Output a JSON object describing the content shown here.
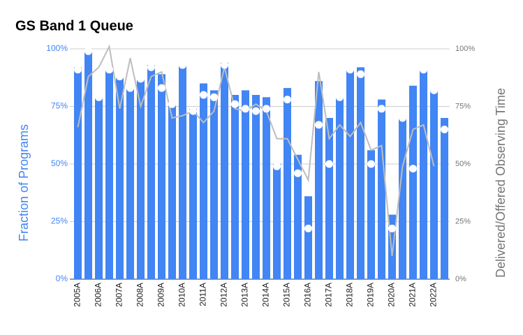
{
  "chart_data": {
    "type": "bar-dot-line",
    "title": "GS Band 1 Queue",
    "y_label": "Fraction of Programs",
    "y2_label": "Delivered/Offered Observing Time",
    "categories": [
      "2005A",
      null,
      "2006A",
      null,
      "2007A",
      null,
      "2008A",
      null,
      "2009A",
      null,
      "2010A",
      null,
      "2011A",
      null,
      "2012A",
      null,
      "2013A",
      null,
      "2014A",
      null,
      "2015A",
      null,
      "2016A",
      null,
      "2017A",
      null,
      "2018A",
      null,
      "2019A",
      null,
      "2020A",
      null,
      "2021A",
      null,
      "2022A",
      null
    ],
    "series": [
      {
        "kind": "bar",
        "color": "#4285f4",
        "values": [
          92,
          99,
          79,
          91,
          88,
          83,
          87,
          93,
          89,
          76,
          93,
          74,
          85,
          82,
          94,
          80,
          82,
          80,
          79,
          50,
          83,
          54,
          36,
          86,
          70,
          79,
          91,
          92,
          56,
          78,
          28,
          70,
          84,
          91,
          82,
          70
        ]
      },
      {
        "kind": "dot",
        "color": "#ffffff",
        "values": [
          91,
          99,
          79,
          91,
          88,
          83,
          87,
          92,
          83,
          76,
          93,
          73,
          80,
          79,
          93,
          76,
          74,
          73,
          74,
          49,
          78,
          46,
          22,
          67,
          50,
          79,
          91,
          89,
          50,
          74,
          22,
          70,
          48,
          91,
          82,
          65
        ]
      },
      {
        "kind": "line",
        "axis": "y2",
        "color": "#bdbdbd",
        "values": [
          66,
          88,
          92,
          101,
          74,
          96,
          75,
          88,
          90,
          70,
          71,
          73,
          68,
          73,
          92,
          74,
          73,
          76,
          73,
          61,
          61,
          52,
          43,
          90,
          61,
          67,
          62,
          68,
          56,
          58,
          10,
          49,
          65,
          67,
          49,
          null
        ]
      }
    ],
    "ylim": [
      0,
      100
    ],
    "yticks": [
      {
        "value": 0,
        "label": "0%"
      },
      {
        "value": 25,
        "label": "25%"
      },
      {
        "value": 50,
        "label": "50%"
      },
      {
        "value": 75,
        "label": "75%"
      },
      {
        "value": 100,
        "label": "100%"
      }
    ],
    "y2lim": [
      0,
      100
    ],
    "y2ticks": [
      {
        "value": 0,
        "label": "0%"
      },
      {
        "value": 25,
        "label": "25%"
      },
      {
        "value": 50,
        "label": "50%"
      },
      {
        "value": 75,
        "label": "75%"
      },
      {
        "value": 100,
        "label": "100%"
      }
    ],
    "grid": true
  }
}
